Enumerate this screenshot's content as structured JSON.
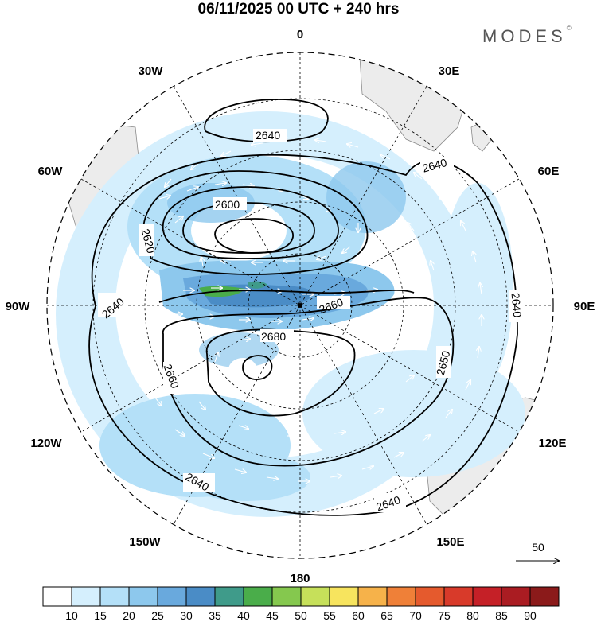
{
  "title": "06/11/2025  00 UTC  + 240 hrs",
  "brand": "MODES",
  "brand_mark": "©",
  "meridian_labels": {
    "m0": "0",
    "m30e": "30E",
    "m60e": "60E",
    "m90e": "90E",
    "m120e": "120E",
    "m150e": "150E",
    "m180": "180",
    "m150w": "150W",
    "m120w": "120W",
    "m90w": "90W",
    "m60w": "60W",
    "m30w": "30W"
  },
  "contour_labels": {
    "c1": "2640",
    "c2": "2640",
    "c3": "2600",
    "c4": "2620",
    "c5": "2640",
    "c6": "2660",
    "c7": "2680",
    "c8": "2660",
    "c9": "2650",
    "c10": "2640",
    "c11": "2640",
    "c12": "2640"
  },
  "wind_reference": {
    "value": "50"
  },
  "colorbar": {
    "colors": [
      "#ffffff",
      "#d5effd",
      "#b4e0f8",
      "#8dc8ed",
      "#69a9dd",
      "#4a8cc6",
      "#3f9b8a",
      "#4aad4a",
      "#85c84e",
      "#c6e05a",
      "#f7e45e",
      "#f6b24a",
      "#ef8038",
      "#e55a2d",
      "#d83a2a",
      "#c52027",
      "#aa1c22",
      "#8b1a1a"
    ],
    "ticks": [
      "10",
      "15",
      "20",
      "25",
      "30",
      "35",
      "40",
      "45",
      "50",
      "55",
      "60",
      "65",
      "70",
      "75",
      "80",
      "85",
      "90"
    ]
  }
}
